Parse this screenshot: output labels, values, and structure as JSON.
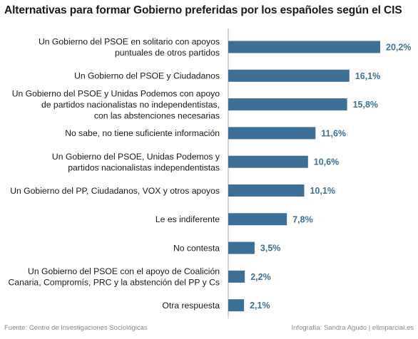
{
  "colors": {
    "bar": "#3d7096",
    "value_label": "#3d7096",
    "category_label": "#1a1a1a",
    "axis": "#b0b0b0"
  },
  "footer": {
    "source": "Fuente: Centro de Investigaciones Sociológicas",
    "credit": "Infografía: Sandra Agudo | elimparcial.es"
  },
  "chart_data": {
    "type": "bar",
    "orientation": "horizontal",
    "title": "Alternativas para formar Gobierno preferidas por los españoles según el CIS",
    "categories": [
      [
        "Un Gobierno del PSOE en solitario con apoyos",
        "puntuales de otros partidos"
      ],
      [
        "Un Gobierno del PSOE y Ciudadanos"
      ],
      [
        "Un Gobierno del PSOE y Unidas Podemos con apoyo",
        "de partidos nacionalistas no independentistas,",
        "con las abstenciones necesarias"
      ],
      [
        "No sabe, no tiene suficiente información"
      ],
      [
        "Un Gobierno del PSOE, Unidas Podemos y",
        "partidos nacionalistas independentistas"
      ],
      [
        "Un Gobierno del PP, Ciudadanos, VOX y otros apoyos"
      ],
      [
        "Le es indiferente"
      ],
      [
        "No contesta"
      ],
      [
        "Un Gobierno del PSOE con el apoyo de Coalición",
        "Canaria, Compromís, PRC y la abstención del PP y Cs"
      ],
      [
        "Otra respuesta"
      ]
    ],
    "values": [
      20.2,
      16.1,
      15.8,
      11.6,
      10.6,
      10.1,
      7.8,
      3.5,
      2.2,
      2.1
    ],
    "value_labels": [
      "20,2%",
      "16,1%",
      "15,8%",
      "11,6%",
      "10,6%",
      "10,1%",
      "7,8%",
      "3,5%",
      "2,2%",
      "2,1%"
    ],
    "xlim": [
      0,
      20.2
    ],
    "grid": false,
    "legend": "none"
  }
}
